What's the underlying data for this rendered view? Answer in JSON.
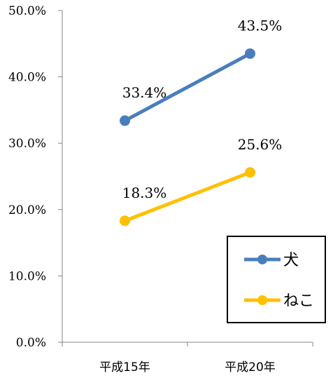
{
  "chart_data": {
    "type": "line",
    "categories": [
      "平成15年",
      "平成20年"
    ],
    "series": [
      {
        "name": "犬",
        "values": [
          33.4,
          43.5
        ],
        "labels": [
          "33.4%",
          "43.5%"
        ],
        "color": "#4A7EBB"
      },
      {
        "name": "ねこ",
        "values": [
          18.3,
          25.6
        ],
        "labels": [
          "18.3%",
          "25.6%"
        ],
        "color": "#FFC000"
      }
    ],
    "ylim": [
      0,
      50
    ],
    "yticks": [
      "0.0%",
      "10.0%",
      "20.0%",
      "30.0%",
      "40.0%",
      "50.0%"
    ],
    "title": "",
    "xlabel": "",
    "ylabel": "",
    "grid": false,
    "legend_position": "bottom-right"
  }
}
